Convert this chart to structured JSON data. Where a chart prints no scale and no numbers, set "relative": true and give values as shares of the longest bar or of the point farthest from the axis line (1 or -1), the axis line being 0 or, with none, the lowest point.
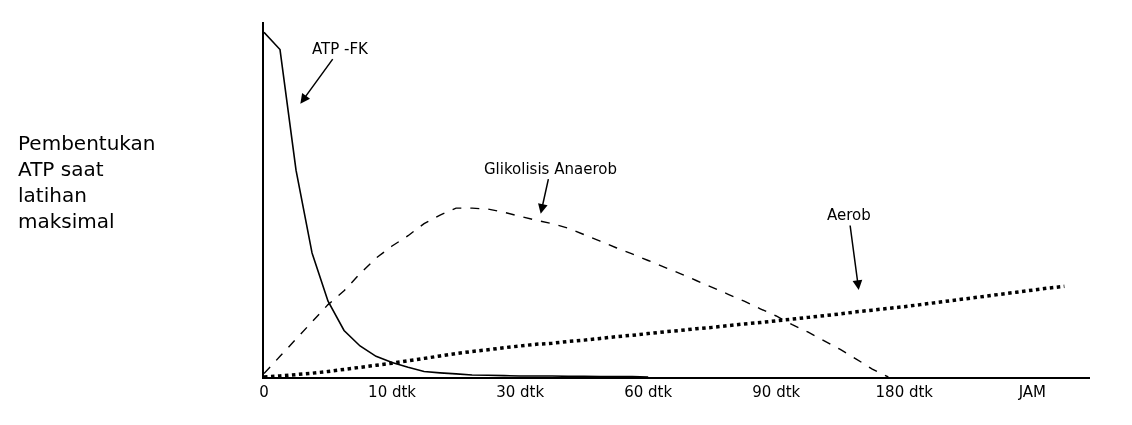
{
  "chart_data": {
    "type": "line",
    "relative": true,
    "categories": [
      "0",
      null,
      null,
      null,
      null,
      null,
      null,
      null,
      "10 dtk",
      null,
      null,
      null,
      null,
      null,
      null,
      null,
      "30 dtk",
      null,
      null,
      null,
      null,
      null,
      null,
      null,
      "60 dtk",
      null,
      null,
      null,
      null,
      null,
      null,
      null,
      "90 dtk",
      null,
      null,
      null,
      null,
      null,
      null,
      null,
      "180 dtk",
      null,
      null,
      null,
      null,
      null,
      null,
      null,
      "JAM",
      null,
      null,
      null
    ],
    "series": [
      {
        "color": "#000000",
        "line_style": "solid",
        "values": [
          1.0,
          0.95,
          0.6,
          0.36,
          0.22,
          0.135,
          0.09,
          0.06,
          0.042,
          0.028,
          0.016,
          0.012,
          0.009,
          0.006,
          0.005,
          0.004,
          0.003,
          0.003,
          0.003,
          0.002,
          0.002,
          0.001,
          0.001,
          0.001,
          0,
          null,
          null,
          null,
          null,
          null,
          null,
          null,
          null,
          null,
          null,
          null,
          null,
          null,
          null,
          null,
          null,
          null,
          null,
          null,
          null,
          null,
          null,
          null,
          null,
          null,
          null,
          null
        ]
      },
      {
        "color": "#000000",
        "line_style": "dashed",
        "values": [
          0.01,
          0.06,
          0.11,
          0.16,
          0.21,
          0.25,
          0.3,
          0.345,
          0.38,
          0.41,
          0.445,
          0.47,
          0.49,
          0.49,
          0.487,
          0.478,
          0.466,
          0.455,
          0.445,
          0.432,
          0.413,
          0.394,
          0.375,
          0.357,
          0.338,
          0.319,
          0.3,
          0.28,
          0.26,
          0.24,
          0.22,
          0.198,
          0.177,
          0.152,
          0.13,
          0.105,
          0.08,
          0.052,
          0.023,
          0,
          null,
          null,
          null,
          null,
          null,
          null,
          null,
          null,
          null,
          null,
          null,
          null
        ]
      },
      {
        "color": "#000000",
        "line_style": "dotted",
        "values": [
          0,
          0.003,
          0.007,
          0.011,
          0.016,
          0.022,
          0.028,
          0.034,
          0.04,
          0.047,
          0.054,
          0.061,
          0.068,
          0.074,
          0.079,
          0.085,
          0.09,
          0.095,
          0.098,
          0.103,
          0.107,
          0.112,
          0.117,
          0.121,
          0.126,
          0.131,
          0.135,
          0.14,
          0.144,
          0.149,
          0.154,
          0.158,
          0.163,
          0.168,
          0.173,
          0.178,
          0.183,
          0.189,
          0.194,
          0.199,
          0.204,
          0.21,
          0.216,
          0.222,
          0.228,
          0.234,
          0.24,
          0.246,
          0.252,
          0.258,
          0.263,
          null
        ]
      }
    ],
    "annotations": [
      "Pembentukan\nATP saat\nlatihan\nmaksimal",
      "ATP -FK",
      "Glikolisis Anaerob",
      "Aerob"
    ]
  }
}
